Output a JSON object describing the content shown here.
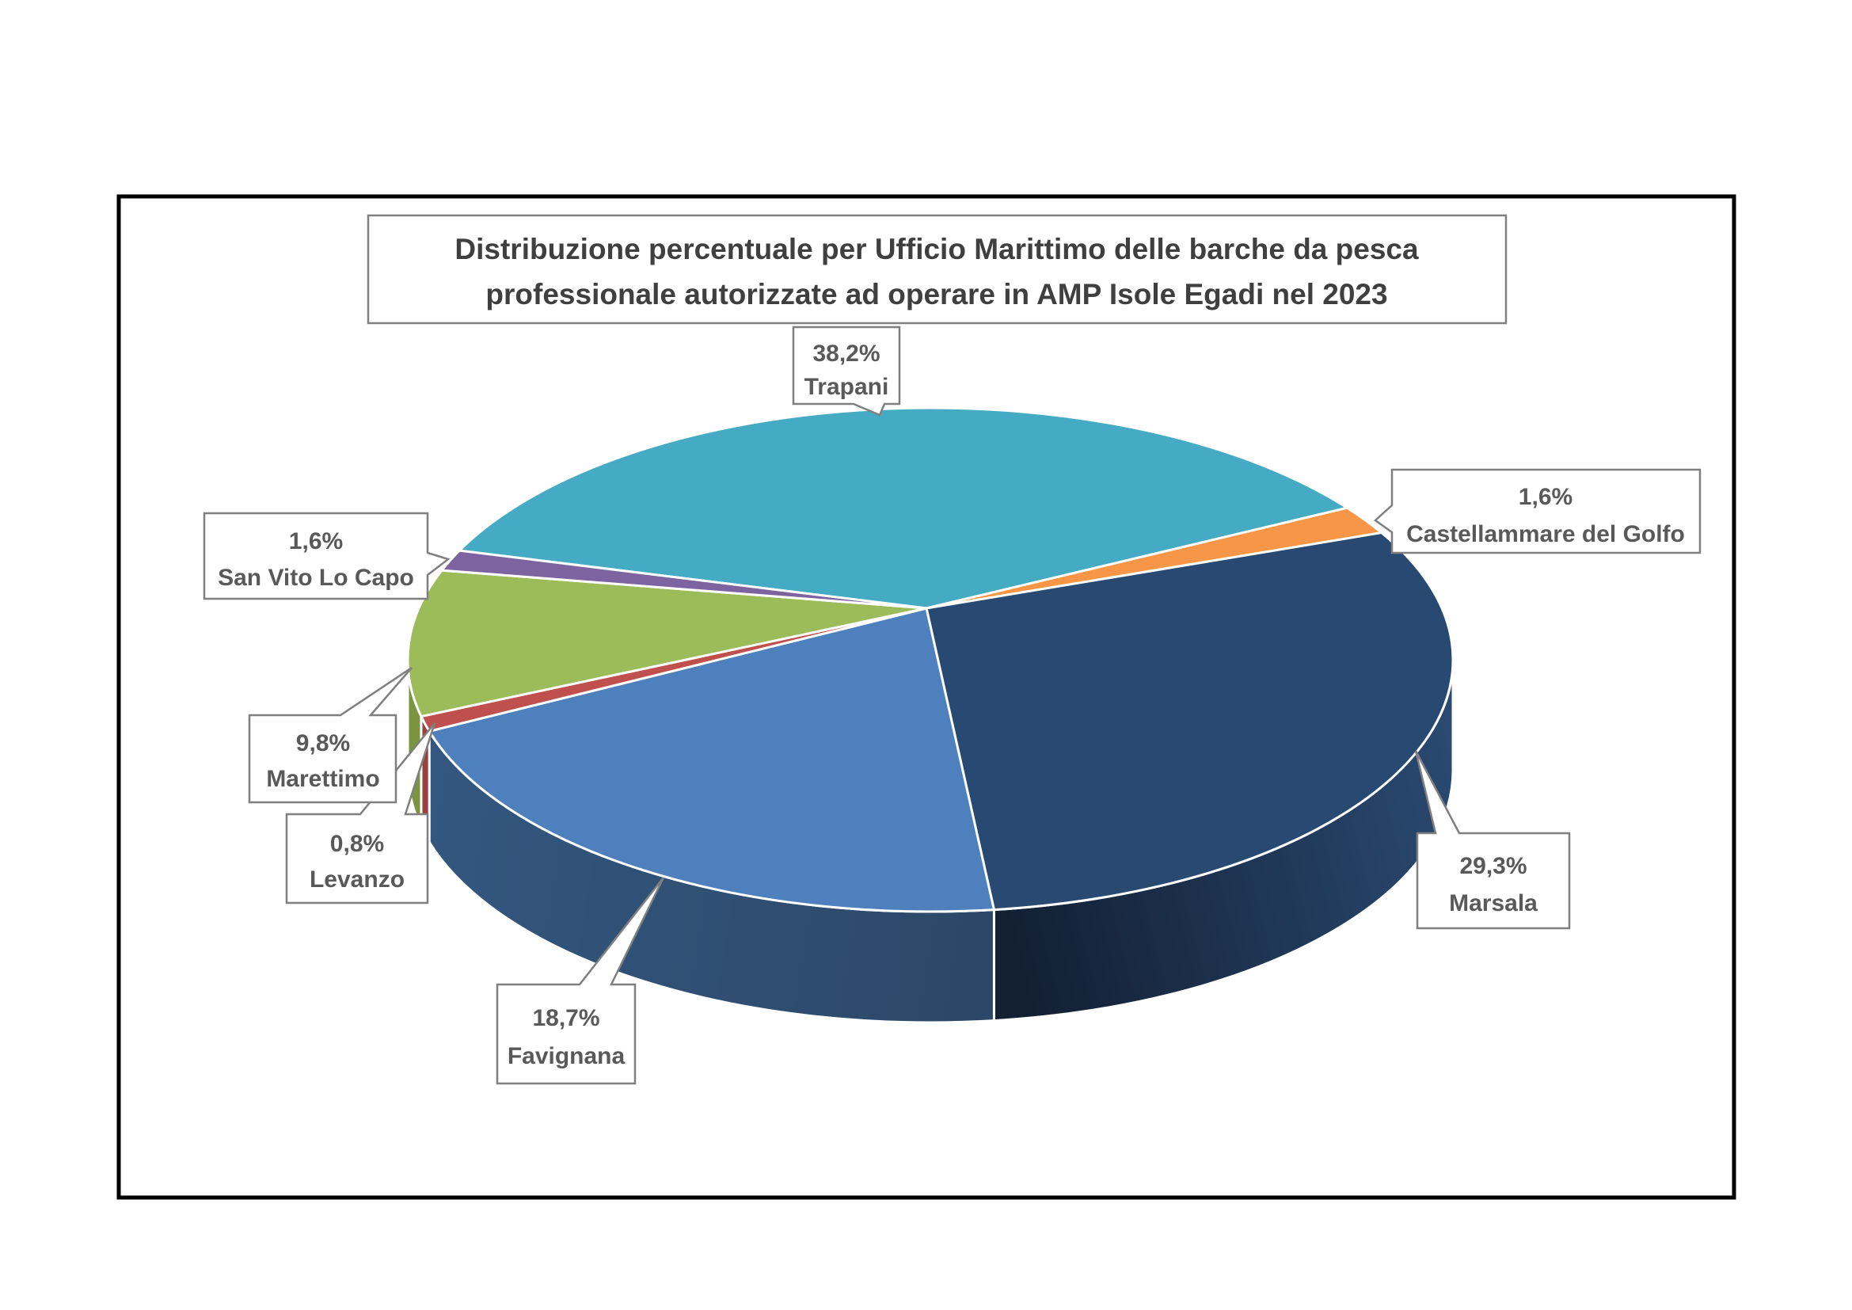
{
  "chart_data": {
    "type": "pie",
    "style": "3d-perspective",
    "title": "Distribuzione percentuale per Ufficio Marittimo delle barche da pesca professionale autorizzate ad operare in AMP Isole Egadi nel 2023",
    "title_lines": [
      "Distribuzione percentuale per Ufficio Marittimo delle barche da pesca",
      "professionale autorizzate ad operare in AMP Isole Egadi nel 2023"
    ],
    "unit": "%",
    "legend": "none",
    "labels_style": "callout-boxes-with-percent-and-name",
    "slices": [
      {
        "label": "Trapani",
        "value": 38.2,
        "display": "38,2%",
        "color": "#45AAC4"
      },
      {
        "label": "Castellammare del Golfo",
        "value": 1.6,
        "display": "1,6%",
        "color": "#F79646"
      },
      {
        "label": "Marsala",
        "value": 29.3,
        "display": "29,3%",
        "color": "#284A72"
      },
      {
        "label": "Favignana",
        "value": 18.7,
        "display": "18,7%",
        "color": "#4E80BD"
      },
      {
        "label": "Levanzo",
        "value": 0.8,
        "display": "0,8%",
        "color": "#C0504D"
      },
      {
        "label": "Marettimo",
        "value": 9.8,
        "display": "9,8%",
        "color": "#9CBB59"
      },
      {
        "label": "San Vito Lo Capo",
        "value": 1.6,
        "display": "1,6%",
        "color": "#7E63A1"
      }
    ],
    "colors": {
      "title_text": "#3F3F3F",
      "label_text": "#595959",
      "box_border": "#7F7F7F",
      "chart_border": "#000000",
      "background": "#FFFFFF"
    }
  }
}
